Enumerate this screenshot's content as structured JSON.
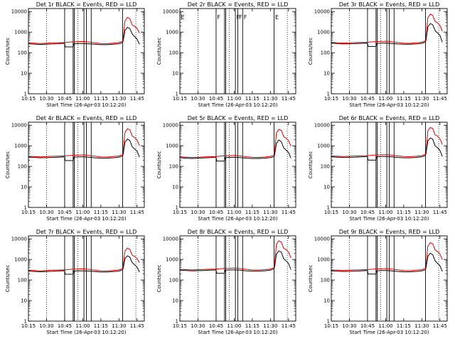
{
  "figure": {
    "colors": {
      "events": "#000000",
      "lld": "#e00000",
      "frame": "#000000",
      "background": "#ffffff"
    }
  },
  "shared": {
    "x_ticks": [
      "10:15",
      "10:30",
      "10:45",
      "11:00",
      "11:15",
      "11:30",
      "11:45"
    ],
    "x_tick_minutes": [
      0,
      15,
      30,
      45,
      60,
      75,
      90
    ],
    "y_ticks": [
      "1",
      "10",
      "100",
      "1000",
      "10000"
    ],
    "y_tick_values": [
      1,
      10,
      100,
      1000,
      10000
    ],
    "ylabel": "Counts/sec",
    "xlabel": "Start Time (26-Apr-03 10:12:20)",
    "xlim_minutes": [
      0,
      96
    ],
    "ylim": [
      1,
      14000
    ],
    "dotted_minutes": [
      15,
      41,
      89
    ],
    "solid_vertical_minutes": [
      30,
      37,
      38,
      46,
      48,
      52,
      78
    ]
  },
  "chart_data": [
    {
      "type": "line",
      "title": "Det 1r BLACK = Events, RED = LLD",
      "series": [
        {
          "name": "Events",
          "x": [
            0,
            5,
            10,
            15,
            20,
            25,
            30,
            30.5,
            37,
            37.5,
            42,
            46,
            50,
            55,
            60,
            65,
            70,
            75,
            78,
            78.5,
            80,
            82,
            84,
            86,
            88,
            90,
            92
          ],
          "values": [
            270,
            260,
            250,
            260,
            265,
            275,
            285,
            190,
            190,
            270,
            280,
            280,
            270,
            255,
            245,
            245,
            255,
            270,
            310,
            380,
            1200,
            1700,
            1500,
            800,
            600,
            450,
            250
          ]
        },
        {
          "name": "LLD",
          "x": [
            0,
            5,
            10,
            15,
            20,
            25,
            30,
            35,
            40,
            46,
            50,
            55,
            60,
            65,
            70,
            75,
            78,
            78.5,
            80,
            82,
            84,
            86,
            88,
            90,
            92
          ],
          "values": [
            300,
            290,
            280,
            290,
            300,
            305,
            310,
            330,
            340,
            350,
            330,
            300,
            280,
            275,
            290,
            310,
            360,
            520,
            3500,
            5200,
            4500,
            2200,
            1900,
            1500,
            900
          ]
        }
      ],
      "ylabel": "Counts/sec",
      "xlabel": "Start Time (26-Apr-03 10:12:20)",
      "markers": []
    },
    {
      "type": "line",
      "title": "Det 2r BLACK = Events, RED = LLD",
      "series": [],
      "ylabel": "Counts/sec",
      "xlabel": "Start Time (26-Apr-03 10:12:20)",
      "markers": [
        {
          "label": "E",
          "minute": 0
        },
        {
          "label": "F",
          "minute": 30
        },
        {
          "label": "F",
          "minute": 46
        },
        {
          "label": "F",
          "minute": 48
        },
        {
          "label": "F",
          "minute": 52
        },
        {
          "label": "E",
          "minute": 78
        }
      ]
    },
    {
      "type": "line",
      "title": "Det 3r BLACK = Events, RED = LLD",
      "series": [
        {
          "name": "Events",
          "x": [
            0,
            5,
            10,
            15,
            20,
            25,
            30,
            30.5,
            37,
            37.5,
            42,
            46,
            50,
            55,
            60,
            65,
            70,
            75,
            78,
            78.5,
            80,
            82,
            84,
            86,
            88,
            90,
            92
          ],
          "values": [
            290,
            275,
            265,
            270,
            275,
            285,
            290,
            200,
            200,
            280,
            290,
            290,
            280,
            265,
            255,
            255,
            265,
            285,
            330,
            420,
            1800,
            2600,
            2300,
            1200,
            900,
            700,
            320
          ]
        },
        {
          "name": "LLD",
          "x": [
            0,
            5,
            10,
            15,
            20,
            25,
            30,
            35,
            40,
            46,
            50,
            55,
            60,
            65,
            70,
            75,
            78,
            78.5,
            80,
            82,
            84,
            86,
            88,
            90,
            92
          ],
          "values": [
            320,
            305,
            295,
            300,
            310,
            315,
            320,
            340,
            350,
            360,
            340,
            310,
            290,
            285,
            300,
            320,
            380,
            560,
            5000,
            7500,
            6500,
            3300,
            2800,
            2100,
            1100
          ]
        }
      ],
      "ylabel": "Counts/sec",
      "xlabel": "Start Time (26-Apr-03 10:12:20)",
      "markers": []
    },
    {
      "type": "line",
      "title": "Det 4r BLACK = Events, RED = LLD",
      "series": [
        {
          "name": "Events",
          "x": [
            0,
            5,
            10,
            15,
            20,
            25,
            30,
            30.5,
            37,
            37.5,
            42,
            46,
            50,
            55,
            60,
            65,
            70,
            75,
            78,
            78.5,
            80,
            82,
            84,
            86,
            88,
            90,
            92
          ],
          "values": [
            280,
            270,
            260,
            265,
            270,
            280,
            290,
            190,
            190,
            280,
            290,
            290,
            280,
            260,
            250,
            250,
            260,
            280,
            320,
            400,
            1500,
            2100,
            1800,
            900,
            700,
            550,
            280
          ]
        },
        {
          "name": "LLD",
          "x": [
            0,
            5,
            10,
            15,
            20,
            25,
            30,
            35,
            40,
            46,
            50,
            55,
            60,
            65,
            70,
            75,
            78,
            78.5,
            80,
            82,
            84,
            86,
            88,
            90,
            92
          ],
          "values": [
            310,
            300,
            290,
            300,
            310,
            315,
            320,
            340,
            350,
            360,
            340,
            310,
            290,
            285,
            300,
            320,
            370,
            550,
            4500,
            6800,
            6000,
            3000,
            2500,
            1900,
            1000
          ]
        }
      ],
      "ylabel": "Counts/sec",
      "xlabel": "Start Time (26-Apr-03 10:12:20)",
      "markers": []
    },
    {
      "type": "line",
      "title": "Det 5r BLACK = Events, RED = LLD",
      "series": [
        {
          "name": "Events",
          "x": [
            0,
            5,
            10,
            15,
            20,
            25,
            30,
            30.5,
            37,
            37.5,
            42,
            46,
            50,
            55,
            60,
            65,
            70,
            75,
            78,
            78.5,
            80,
            82,
            84,
            86,
            88,
            90,
            92
          ],
          "values": [
            260,
            250,
            240,
            250,
            255,
            265,
            275,
            180,
            180,
            265,
            275,
            275,
            265,
            250,
            240,
            240,
            250,
            265,
            300,
            370,
            1300,
            1900,
            1600,
            800,
            620,
            480,
            250
          ]
        },
        {
          "name": "LLD",
          "x": [
            0,
            5,
            10,
            15,
            20,
            25,
            30,
            35,
            40,
            46,
            50,
            55,
            60,
            65,
            70,
            75,
            78,
            78.5,
            80,
            82,
            84,
            86,
            88,
            90,
            92
          ],
          "values": [
            290,
            280,
            270,
            280,
            290,
            295,
            300,
            320,
            330,
            340,
            320,
            295,
            275,
            270,
            285,
            305,
            350,
            520,
            4200,
            6300,
            5600,
            2800,
            2300,
            1800,
            950
          ]
        }
      ],
      "ylabel": "Counts/sec",
      "xlabel": "Start Time (26-Apr-03 10:12:20)",
      "markers": []
    },
    {
      "type": "line",
      "title": "Det 6r BLACK = Events, RED = LLD",
      "series": [
        {
          "name": "Events",
          "x": [
            0,
            5,
            10,
            15,
            20,
            25,
            30,
            30.5,
            37,
            37.5,
            42,
            46,
            50,
            55,
            60,
            65,
            70,
            75,
            78,
            78.5,
            80,
            82,
            84,
            86,
            88,
            90,
            92
          ],
          "values": [
            290,
            280,
            270,
            275,
            280,
            290,
            300,
            200,
            200,
            290,
            300,
            300,
            290,
            270,
            260,
            260,
            270,
            290,
            340,
            430,
            1700,
            2400,
            2100,
            1000,
            800,
            600,
            300
          ]
        },
        {
          "name": "LLD",
          "x": [
            0,
            5,
            10,
            15,
            20,
            25,
            30,
            35,
            40,
            46,
            50,
            55,
            60,
            65,
            70,
            75,
            78,
            78.5,
            80,
            82,
            84,
            86,
            88,
            90,
            92
          ],
          "values": [
            320,
            310,
            300,
            310,
            320,
            325,
            330,
            350,
            360,
            370,
            350,
            320,
            300,
            295,
            310,
            330,
            390,
            580,
            5200,
            7800,
            6900,
            3400,
            2900,
            2200,
            1150
          ]
        }
      ],
      "ylabel": "Counts/sec",
      "xlabel": "Start Time (26-Apr-03 10:12:20)",
      "markers": []
    },
    {
      "type": "line",
      "title": "Det 7r BLACK = Events, RED = LLD",
      "series": [
        {
          "name": "Events",
          "x": [
            0,
            5,
            10,
            15,
            20,
            25,
            30,
            30.5,
            37,
            37.5,
            42,
            46,
            50,
            55,
            60,
            65,
            70,
            75,
            78,
            78.5,
            80,
            82,
            84,
            86,
            88,
            90,
            92
          ],
          "values": [
            270,
            260,
            250,
            260,
            265,
            275,
            285,
            190,
            190,
            270,
            280,
            280,
            270,
            255,
            245,
            245,
            255,
            270,
            310,
            380,
            1100,
            1500,
            1300,
            700,
            550,
            420,
            240
          ]
        },
        {
          "name": "LLD",
          "x": [
            0,
            5,
            10,
            15,
            20,
            25,
            30,
            35,
            40,
            46,
            50,
            55,
            60,
            65,
            70,
            75,
            78,
            78.5,
            80,
            82,
            84,
            86,
            88,
            90,
            92
          ],
          "values": [
            300,
            290,
            280,
            290,
            300,
            305,
            310,
            330,
            340,
            350,
            330,
            300,
            280,
            275,
            290,
            310,
            360,
            500,
            2600,
            3600,
            3100,
            1600,
            1400,
            1100,
            700
          ]
        }
      ],
      "ylabel": "Counts/sec",
      "xlabel": "Start Time (26-Apr-03 10:12:20)",
      "markers": []
    },
    {
      "type": "line",
      "title": "Det 8r BLACK = Events, RED = LLD",
      "series": [
        {
          "name": "Events",
          "x": [
            0,
            5,
            10,
            15,
            20,
            25,
            30,
            30.5,
            37,
            37.5,
            42,
            46,
            50,
            55,
            60,
            65,
            70,
            75,
            78,
            78.5,
            80,
            82,
            84,
            86,
            88,
            90,
            92
          ],
          "values": [
            300,
            290,
            280,
            285,
            290,
            300,
            310,
            210,
            210,
            300,
            310,
            310,
            300,
            280,
            270,
            270,
            280,
            300,
            350,
            440,
            1800,
            2600,
            2300,
            1100,
            850,
            650,
            320
          ]
        },
        {
          "name": "LLD",
          "x": [
            0,
            5,
            10,
            15,
            20,
            25,
            30,
            35,
            40,
            46,
            50,
            55,
            60,
            65,
            70,
            75,
            78,
            78.5,
            80,
            82,
            84,
            86,
            88,
            90,
            92
          ],
          "values": [
            330,
            320,
            310,
            320,
            330,
            335,
            340,
            360,
            370,
            380,
            360,
            330,
            310,
            305,
            320,
            340,
            400,
            600,
            5500,
            8000,
            7000,
            3500,
            3000,
            2300,
            1200
          ]
        }
      ],
      "ylabel": "Counts/sec",
      "xlabel": "Start Time (26-Apr-03 10:12:20)",
      "markers": []
    },
    {
      "type": "line",
      "title": "Det 9r BLACK = Events, RED = LLD",
      "series": [
        {
          "name": "Events",
          "x": [
            0,
            5,
            10,
            15,
            20,
            25,
            30,
            30.5,
            37,
            37.5,
            42,
            46,
            50,
            55,
            60,
            65,
            70,
            75,
            78,
            78.5,
            80,
            82,
            84,
            86,
            88,
            90,
            92
          ],
          "values": [
            280,
            270,
            260,
            265,
            270,
            280,
            290,
            195,
            195,
            280,
            290,
            290,
            280,
            260,
            250,
            250,
            260,
            280,
            320,
            400,
            1400,
            2000,
            1700,
            850,
            650,
            500,
            260
          ]
        },
        {
          "name": "LLD",
          "x": [
            0,
            5,
            10,
            15,
            20,
            25,
            30,
            35,
            40,
            46,
            50,
            55,
            60,
            65,
            70,
            75,
            78,
            78.5,
            80,
            82,
            84,
            86,
            88,
            90,
            92
          ],
          "values": [
            310,
            300,
            290,
            300,
            310,
            315,
            320,
            340,
            350,
            360,
            340,
            310,
            290,
            285,
            300,
            320,
            370,
            540,
            4400,
            6600,
            5800,
            2900,
            2400,
            1850,
            980
          ]
        }
      ],
      "ylabel": "Counts/sec",
      "xlabel": "Start Time (26-Apr-03 10:12:20)",
      "markers": []
    }
  ]
}
